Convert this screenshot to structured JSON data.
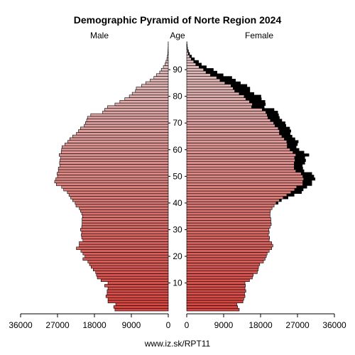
{
  "chart_data": {
    "type": "bar",
    "subtype": "population-pyramid",
    "title": "Demographic Pyramid of Norte Region 2024",
    "left_label": "Male",
    "center_label": "Age",
    "right_label": "Female",
    "footer": "www.iz.sk/RPT11",
    "x_ticks_left": [
      "36000",
      "27000",
      "18000",
      "9000",
      "0"
    ],
    "x_ticks_right": [
      "0",
      "9000",
      "18000",
      "27000",
      "36000"
    ],
    "age_ticks": [
      "10",
      "20",
      "30",
      "40",
      "50",
      "60",
      "70",
      "80",
      "90"
    ],
    "xlim": [
      0,
      36000
    ],
    "age_range": [
      0,
      100
    ],
    "grid": false,
    "colors": {
      "young": "#d7443f",
      "old": "#e2c9c9",
      "excess": "#000000",
      "outline": "#000000"
    },
    "categories": [
      "0",
      "1",
      "2",
      "3",
      "4",
      "5",
      "6",
      "7",
      "8",
      "9",
      "10",
      "11",
      "12",
      "13",
      "14",
      "15",
      "16",
      "17",
      "18",
      "19",
      "20",
      "21",
      "22",
      "23",
      "24",
      "25",
      "26",
      "27",
      "28",
      "29",
      "30",
      "31",
      "32",
      "33",
      "34",
      "35",
      "36",
      "37",
      "38",
      "39",
      "40",
      "41",
      "42",
      "43",
      "44",
      "45",
      "46",
      "47",
      "48",
      "49",
      "50",
      "51",
      "52",
      "53",
      "54",
      "55",
      "56",
      "57",
      "58",
      "59",
      "60",
      "61",
      "62",
      "63",
      "64",
      "65",
      "66",
      "67",
      "68",
      "69",
      "70",
      "71",
      "72",
      "73",
      "74",
      "75",
      "76",
      "77",
      "78",
      "79",
      "80",
      "81",
      "82",
      "83",
      "84",
      "85",
      "86",
      "87",
      "88",
      "89",
      "90",
      "91",
      "92",
      "93",
      "94",
      "95",
      "96",
      "97",
      "98",
      "99",
      "100"
    ],
    "series": [
      {
        "name": "Male",
        "values": [
          13000,
          13300,
          12800,
          14700,
          14700,
          15200,
          14900,
          14900,
          14700,
          15500,
          14700,
          16400,
          17300,
          17500,
          17700,
          18300,
          18800,
          19200,
          19600,
          20800,
          20300,
          20800,
          21300,
          22400,
          21700,
          21700,
          20800,
          21100,
          21200,
          21100,
          21400,
          21100,
          21000,
          21000,
          21000,
          20900,
          21100,
          21400,
          21700,
          22500,
          22700,
          23300,
          23800,
          24200,
          24600,
          25500,
          26000,
          27300,
          27700,
          27400,
          27000,
          27100,
          26800,
          26800,
          26400,
          26500,
          26400,
          26200,
          26600,
          26100,
          26000,
          25900,
          25200,
          24500,
          24000,
          23300,
          22400,
          21900,
          21400,
          20500,
          20200,
          19900,
          19700,
          18900,
          16000,
          15500,
          14800,
          13000,
          11800,
          10600,
          9500,
          8800,
          8000,
          7800,
          6500,
          5500,
          4400,
          3500,
          2900,
          2100,
          1700,
          1200,
          800,
          550,
          330,
          210,
          130,
          80,
          50,
          30,
          20
        ]
      },
      {
        "name": "Female",
        "values": [
          12800,
          12400,
          12200,
          13700,
          13900,
          14200,
          14100,
          14400,
          14200,
          14300,
          14200,
          15300,
          16000,
          16200,
          17200,
          17400,
          17500,
          17800,
          18700,
          19100,
          19400,
          19600,
          20100,
          20700,
          21000,
          20700,
          20100,
          20200,
          19900,
          20100,
          20000,
          20300,
          20600,
          20500,
          20500,
          20300,
          20300,
          20400,
          20800,
          21300,
          21800,
          22600,
          23500,
          24400,
          25400,
          26300,
          26800,
          28300,
          28300,
          28500,
          28300,
          27900,
          26600,
          26200,
          26200,
          26200,
          26400,
          26300,
          26600,
          25900,
          25200,
          24500,
          24500,
          24400,
          23800,
          23200,
          22600,
          22600,
          22300,
          21500,
          21200,
          20400,
          19800,
          19600,
          19300,
          18400,
          15800,
          16000,
          15300,
          14400,
          14000,
          12800,
          11700,
          11300,
          10800,
          9300,
          8100,
          7300,
          5800,
          4700,
          4100,
          3000,
          2200,
          1700,
          1100,
          700,
          400,
          250,
          130,
          70,
          40
        ]
      },
      {
        "name": "Female excess",
        "values": [
          0,
          0,
          0,
          0,
          0,
          0,
          0,
          0,
          0,
          0,
          0,
          0,
          0,
          0,
          0,
          0,
          0,
          0,
          0,
          0,
          0,
          0,
          0,
          0,
          0,
          0,
          0,
          0,
          0,
          0,
          0,
          0,
          0,
          0,
          0,
          0,
          0,
          0,
          0,
          0,
          500,
          500,
          1200,
          1800,
          2600,
          2100,
          2500,
          2200,
          2200,
          2800,
          2700,
          2600,
          2000,
          2100,
          2000,
          2600,
          2600,
          2500,
          3200,
          2700,
          2200,
          2200,
          2500,
          2800,
          2600,
          2500,
          2600,
          2800,
          2800,
          2700,
          2800,
          2800,
          2800,
          2800,
          2900,
          2900,
          3100,
          3200,
          3800,
          3800,
          4100,
          3600,
          3700,
          4100,
          3900,
          3800,
          3800,
          3700,
          3100,
          2700,
          2400,
          1800,
          1400,
          1200,
          800,
          500,
          300,
          180,
          90,
          50,
          30
        ]
      }
    ]
  }
}
